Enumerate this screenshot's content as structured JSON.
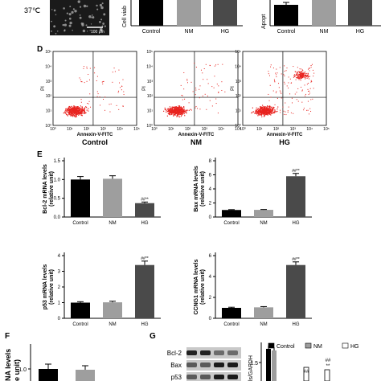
{
  "panel_a_top": {
    "temp_label": "37℃",
    "scale_bar": "100 μm",
    "viability_ylabel": "Cell viab",
    "viability_categories": [
      "Control",
      "NM",
      "HG"
    ],
    "apoptosis_ylabel": "Apopt",
    "apoptosis_categories": [
      "Control",
      "NM",
      "HG"
    ]
  },
  "panel_d": {
    "letter": "D",
    "ylabel": "PI",
    "xlabel": "Annexin-V-FITC",
    "ticks_x": [
      "10⁰",
      "10¹",
      "10²",
      "10³",
      "10⁴",
      "10⁵"
    ],
    "ticks_y": [
      "10⁰",
      "10¹",
      "10²",
      "10³",
      "10⁴",
      "10⁵"
    ],
    "groups": [
      "Control",
      "NM",
      "HG"
    ]
  },
  "panel_e_letter": "E",
  "panel_f_letter": "F",
  "panel_g_letter": "G",
  "panel_g": {
    "blot_labels": [
      "Bcl-2",
      "Bax",
      "p53"
    ],
    "ylabel": "ls/GAPDH",
    "ytick": "1.5",
    "legend": [
      {
        "label": "Control",
        "color": "#000000"
      },
      {
        "label": "NM",
        "color": "#9e9e9e"
      },
      {
        "label": "HG",
        "color": "#ffffff"
      }
    ],
    "marks": [
      "##",
      "##",
      "**"
    ]
  },
  "panel_f": {
    "ylabel_1": "NA levels",
    "ylabel_2": "e unit)",
    "ytick": "1.0"
  },
  "chart_data": [
    {
      "type": "bar",
      "ylabel": "Bcl-2 mRNA levels (relative unit)",
      "categories": [
        "Control",
        "NM",
        "HG"
      ],
      "values": [
        1.0,
        1.02,
        0.37
      ],
      "errors": [
        0.08,
        0.08,
        0.03
      ],
      "ylim": [
        0,
        1.5
      ],
      "yticks": [
        "0.0",
        "0.5",
        "1.0",
        "1.5"
      ],
      "colors": [
        "#000000",
        "#9e9e9e",
        "#4a4a4a"
      ],
      "annotation": "##**"
    },
    {
      "type": "bar",
      "ylabel": "Bax mRNA levels (relative unit)",
      "categories": [
        "Control",
        "NM",
        "HG"
      ],
      "values": [
        1.0,
        1.02,
        5.8
      ],
      "errors": [
        0.05,
        0.05,
        0.4
      ],
      "ylim": [
        0,
        8
      ],
      "yticks": [
        "0",
        "2",
        "4",
        "6",
        "8"
      ],
      "colors": [
        "#000000",
        "#9e9e9e",
        "#4a4a4a"
      ],
      "annotation": "##**"
    },
    {
      "type": "bar",
      "ylabel": "p53 mRNA levels (relative unit)",
      "categories": [
        "Control",
        "NM",
        "HG"
      ],
      "values": [
        1.0,
        1.02,
        3.4
      ],
      "errors": [
        0.06,
        0.07,
        0.25
      ],
      "ylim": [
        0,
        4
      ],
      "yticks": [
        "0",
        "1",
        "2",
        "3",
        "4"
      ],
      "colors": [
        "#000000",
        "#9e9e9e",
        "#4a4a4a"
      ],
      "annotation": "##**"
    },
    {
      "type": "bar",
      "ylabel": "CCNG1 mRNA levels (relative unit)",
      "categories": [
        "Control",
        "NM",
        "HG"
      ],
      "values": [
        1.0,
        1.05,
        5.1
      ],
      "errors": [
        0.06,
        0.07,
        0.3
      ],
      "ylim": [
        0,
        6
      ],
      "yticks": [
        "0",
        "2",
        "4",
        "6"
      ],
      "colors": [
        "#000000",
        "#9e9e9e",
        "#4a4a4a"
      ],
      "annotation": "##**"
    }
  ]
}
